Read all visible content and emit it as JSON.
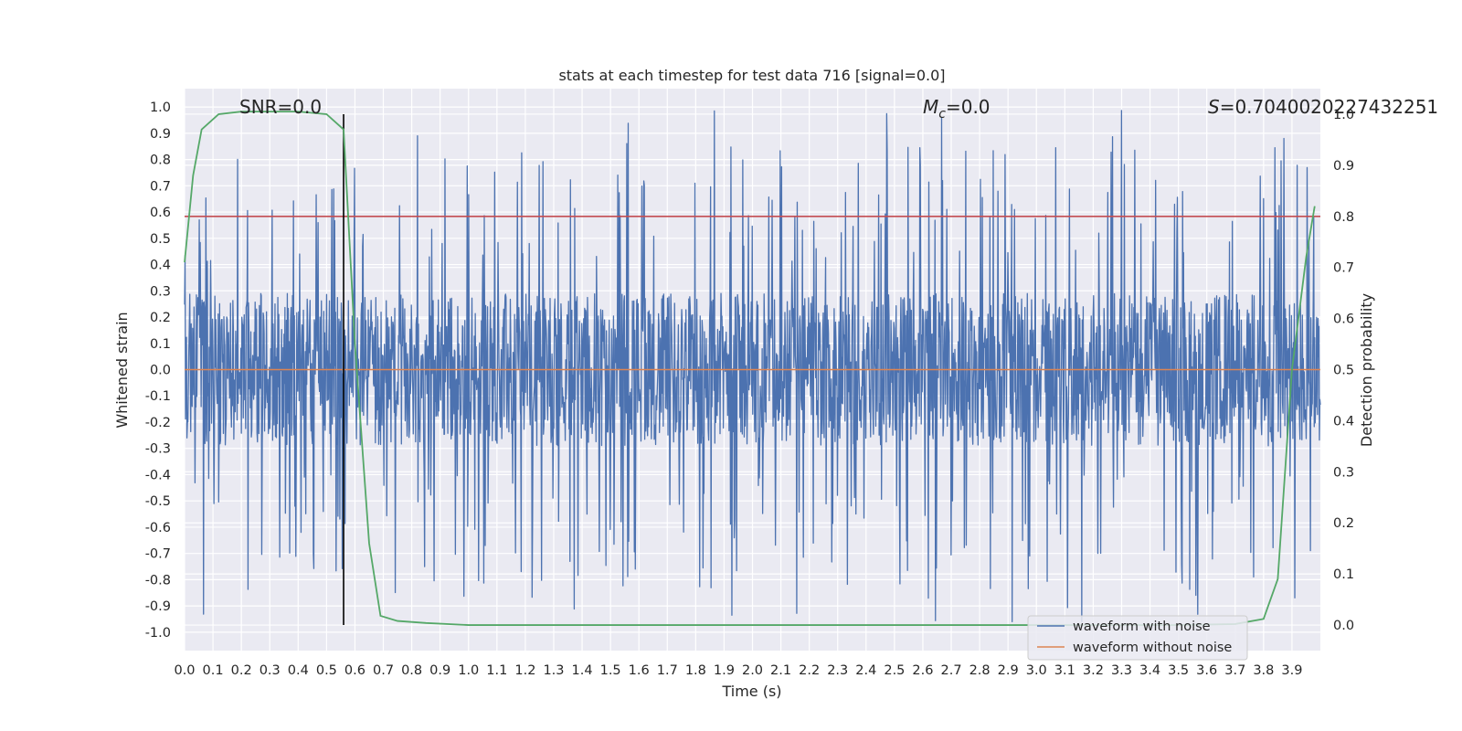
{
  "chart_data": {
    "type": "line",
    "title": "stats at each timestep for test data 716 [signal=0.0]",
    "xlabel": "Time (s)",
    "ylabel": "Whitened strain",
    "y2label": "Detection probability",
    "xlim": [
      0.0,
      4.0
    ],
    "ylim": [
      -1.07,
      1.07
    ],
    "y2lim": [
      -0.05,
      1.05
    ],
    "grid": true,
    "x_ticks": [
      "0.0",
      "0.1",
      "0.2",
      "0.3",
      "0.4",
      "0.5",
      "0.6",
      "0.7",
      "0.8",
      "0.9",
      "1.0",
      "1.1",
      "1.2",
      "1.3",
      "1.4",
      "1.5",
      "1.6",
      "1.7",
      "1.8",
      "1.9",
      "2.0",
      "2.1",
      "2.2",
      "2.3",
      "2.4",
      "2.5",
      "2.6",
      "2.7",
      "2.8",
      "2.9",
      "3.0",
      "3.1",
      "3.2",
      "3.3",
      "3.4",
      "3.5",
      "3.6",
      "3.7",
      "3.8",
      "3.9"
    ],
    "y_ticks": [
      "1.0",
      "0.9",
      "0.8",
      "0.7",
      "0.6",
      "0.5",
      "0.4",
      "0.3",
      "0.2",
      "0.1",
      "0.0",
      "-0.1",
      "-0.2",
      "-0.3",
      "-0.4",
      "-0.5",
      "-0.6",
      "-0.7",
      "-0.8",
      "-0.9",
      "-1.0"
    ],
    "y2_ticks": [
      "1.0",
      "0.9",
      "0.8",
      "0.7",
      "0.6",
      "0.5",
      "0.4",
      "0.3",
      "0.2",
      "0.1",
      "0.0"
    ],
    "annotations": {
      "snr": "SNR=0.0",
      "mc_symbol": "M",
      "mc_sub": "c",
      "mc_value": "=0.0",
      "s_symbol": "S",
      "s_value": "=0.7040020227432251"
    },
    "threshold": {
      "value": 0.8,
      "axis": "y2",
      "color": "#c44e52"
    },
    "marker_time": 0.56,
    "series": [
      {
        "name": "waveform with noise",
        "axis": "y",
        "color": "#4c72b0",
        "amplitude_envelope": [
          -0.96,
          0.99
        ],
        "note": "dense whitened-noise trace, 0.0–4.0 s"
      },
      {
        "name": "waveform without noise",
        "axis": "y",
        "color": "#dd8452",
        "x": [
          0.0,
          4.0
        ],
        "y": [
          0.0,
          0.0
        ]
      },
      {
        "name": "detection probability",
        "axis": "y2",
        "color": "#55a868",
        "x": [
          0.0,
          0.03,
          0.06,
          0.12,
          0.2,
          0.3,
          0.4,
          0.5,
          0.56,
          0.6,
          0.65,
          0.69,
          0.75,
          0.85,
          1.0,
          2.0,
          3.0,
          3.5,
          3.7,
          3.8,
          3.85,
          3.9,
          3.95,
          3.98
        ],
        "y": [
          0.71,
          0.88,
          0.97,
          1.0,
          1.005,
          1.005,
          1.005,
          1.0,
          0.97,
          0.55,
          0.16,
          0.018,
          0.008,
          0.004,
          0.0,
          0.0,
          0.0,
          0.0,
          0.002,
          0.012,
          0.09,
          0.5,
          0.72,
          0.82
        ]
      }
    ],
    "legend": {
      "placement": "lower-right",
      "entries": [
        {
          "label": "waveform with noise",
          "color": "#4c72b0"
        },
        {
          "label": "waveform without noise",
          "color": "#dd8452"
        }
      ]
    }
  }
}
